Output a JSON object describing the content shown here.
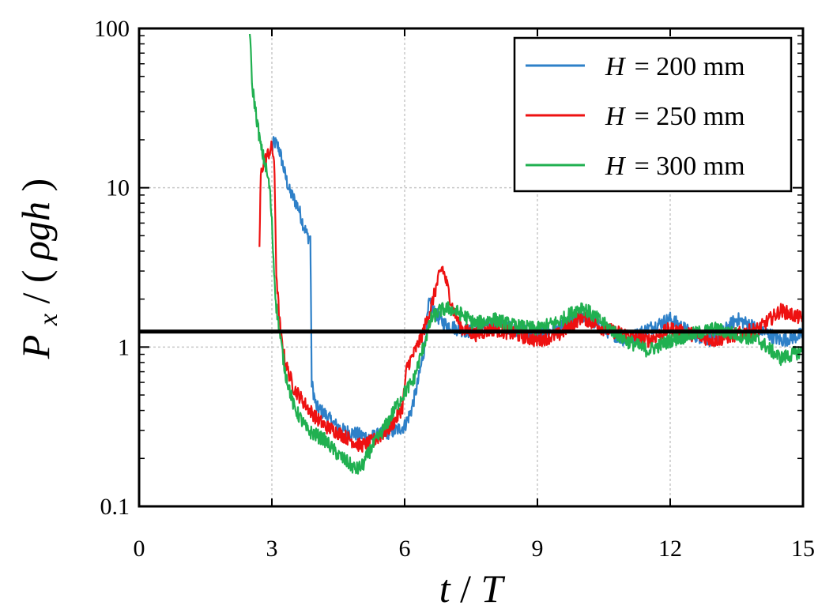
{
  "chart_data": {
    "type": "line",
    "xlabel_var": "t",
    "xlabel_unit": "T",
    "ylabel_var": "P",
    "ylabel_sub": "x",
    "ylabel_denom": "ρgh",
    "xlim": [
      0,
      15
    ],
    "ylim": [
      0.1,
      100
    ],
    "yscale": "log",
    "x_ticks": [
      0,
      3,
      6,
      9,
      12,
      15
    ],
    "x_tick_labels": [
      "0",
      "3",
      "6",
      "9",
      "12",
      "15"
    ],
    "y_ticks": [
      0.1,
      1,
      10,
      100
    ],
    "y_tick_labels": [
      "0.1",
      "1",
      "10",
      "100"
    ],
    "grid": true,
    "reference_line": {
      "y": 1.25,
      "color": "#000000"
    },
    "legend_position": "top-right",
    "series": [
      {
        "name": "H = 200 mm",
        "legend_var": "H",
        "legend_value": "= 200 mm",
        "color": "#2e80c8",
        "points": [
          [
            3.0,
            17
          ],
          [
            3.05,
            19.5
          ],
          [
            3.15,
            18
          ],
          [
            3.2,
            16
          ],
          [
            3.3,
            12
          ],
          [
            3.4,
            9.5
          ],
          [
            3.5,
            8.5
          ],
          [
            3.6,
            7.5
          ],
          [
            3.7,
            6
          ],
          [
            3.8,
            5
          ],
          [
            3.87,
            4.8
          ],
          [
            3.88,
            2.5
          ],
          [
            3.9,
            0.6
          ],
          [
            3.95,
            0.5
          ],
          [
            4.0,
            0.42
          ],
          [
            4.2,
            0.38
          ],
          [
            4.4,
            0.33
          ],
          [
            4.6,
            0.3
          ],
          [
            4.8,
            0.29
          ],
          [
            5.0,
            0.28
          ],
          [
            5.2,
            0.27
          ],
          [
            5.4,
            0.28
          ],
          [
            5.6,
            0.29
          ],
          [
            5.8,
            0.3
          ],
          [
            6.0,
            0.32
          ],
          [
            6.15,
            0.4
          ],
          [
            6.3,
            0.6
          ],
          [
            6.45,
            1.0
          ],
          [
            6.55,
            1.9
          ],
          [
            6.7,
            1.6
          ],
          [
            6.9,
            1.4
          ],
          [
            7.2,
            1.3
          ],
          [
            7.5,
            1.25
          ],
          [
            8.0,
            1.4
          ],
          [
            8.5,
            1.3
          ],
          [
            9.0,
            1.2
          ],
          [
            9.5,
            1.3
          ],
          [
            10.0,
            1.6
          ],
          [
            10.5,
            1.3
          ],
          [
            11.0,
            1.1
          ],
          [
            11.5,
            1.3
          ],
          [
            12.0,
            1.5
          ],
          [
            12.5,
            1.2
          ],
          [
            13.0,
            1.1
          ],
          [
            13.5,
            1.5
          ],
          [
            14.0,
            1.3
          ],
          [
            14.5,
            1.1
          ],
          [
            15.0,
            1.2
          ]
        ]
      },
      {
        "name": "H = 250 mm",
        "legend_var": "H",
        "legend_value": "= 250 mm",
        "color": "#ee1111",
        "points": [
          [
            2.72,
            4.3
          ],
          [
            2.75,
            12
          ],
          [
            2.8,
            14
          ],
          [
            2.9,
            16
          ],
          [
            3.0,
            18
          ],
          [
            3.05,
            15
          ],
          [
            3.08,
            6
          ],
          [
            3.1,
            3
          ],
          [
            3.15,
            1.8
          ],
          [
            3.2,
            1.2
          ],
          [
            3.3,
            0.8
          ],
          [
            3.5,
            0.55
          ],
          [
            3.8,
            0.42
          ],
          [
            4.0,
            0.36
          ],
          [
            4.2,
            0.32
          ],
          [
            4.5,
            0.29
          ],
          [
            4.8,
            0.26
          ],
          [
            5.0,
            0.24
          ],
          [
            5.2,
            0.25
          ],
          [
            5.4,
            0.27
          ],
          [
            5.6,
            0.3
          ],
          [
            5.8,
            0.35
          ],
          [
            5.95,
            0.42
          ],
          [
            6.05,
            0.75
          ],
          [
            6.2,
            0.9
          ],
          [
            6.4,
            1.2
          ],
          [
            6.6,
            1.8
          ],
          [
            6.75,
            2.6
          ],
          [
            6.85,
            3.2
          ],
          [
            6.95,
            2.5
          ],
          [
            7.1,
            1.7
          ],
          [
            7.3,
            1.3
          ],
          [
            7.6,
            1.2
          ],
          [
            8.0,
            1.3
          ],
          [
            8.5,
            1.2
          ],
          [
            9.0,
            1.1
          ],
          [
            9.5,
            1.2
          ],
          [
            10.0,
            1.55
          ],
          [
            10.5,
            1.3
          ],
          [
            11.0,
            1.2
          ],
          [
            11.5,
            1.1
          ],
          [
            12.0,
            1.3
          ],
          [
            12.5,
            1.2
          ],
          [
            13.0,
            1.1
          ],
          [
            13.5,
            1.2
          ],
          [
            14.0,
            1.3
          ],
          [
            14.5,
            1.7
          ],
          [
            15.0,
            1.5
          ]
        ]
      },
      {
        "name": "H = 300 mm",
        "legend_var": "H",
        "legend_value": "= 300 mm",
        "color": "#20b050",
        "points": [
          [
            2.5,
            100
          ],
          [
            2.55,
            45
          ],
          [
            2.65,
            28
          ],
          [
            2.75,
            18
          ],
          [
            2.85,
            14
          ],
          [
            2.95,
            10
          ],
          [
            3.0,
            6
          ],
          [
            3.05,
            3
          ],
          [
            3.1,
            1.8
          ],
          [
            3.2,
            1.1
          ],
          [
            3.3,
            0.7
          ],
          [
            3.5,
            0.42
          ],
          [
            3.8,
            0.3
          ],
          [
            4.0,
            0.28
          ],
          [
            4.2,
            0.26
          ],
          [
            4.5,
            0.21
          ],
          [
            4.7,
            0.19
          ],
          [
            4.9,
            0.17
          ],
          [
            5.05,
            0.18
          ],
          [
            5.2,
            0.22
          ],
          [
            5.4,
            0.27
          ],
          [
            5.6,
            0.33
          ],
          [
            5.8,
            0.42
          ],
          [
            6.0,
            0.52
          ],
          [
            6.2,
            0.62
          ],
          [
            6.4,
            0.95
          ],
          [
            6.6,
            1.5
          ],
          [
            6.8,
            1.7
          ],
          [
            7.0,
            1.75
          ],
          [
            7.3,
            1.6
          ],
          [
            7.6,
            1.4
          ],
          [
            8.0,
            1.5
          ],
          [
            8.5,
            1.35
          ],
          [
            9.0,
            1.3
          ],
          [
            9.5,
            1.45
          ],
          [
            10.0,
            1.8
          ],
          [
            10.5,
            1.4
          ],
          [
            11.0,
            1.1
          ],
          [
            11.5,
            0.95
          ],
          [
            12.0,
            1.1
          ],
          [
            12.5,
            1.2
          ],
          [
            13.0,
            1.3
          ],
          [
            13.5,
            1.2
          ],
          [
            14.0,
            1.1
          ],
          [
            14.5,
            0.85
          ],
          [
            15.0,
            0.95
          ]
        ]
      }
    ]
  }
}
